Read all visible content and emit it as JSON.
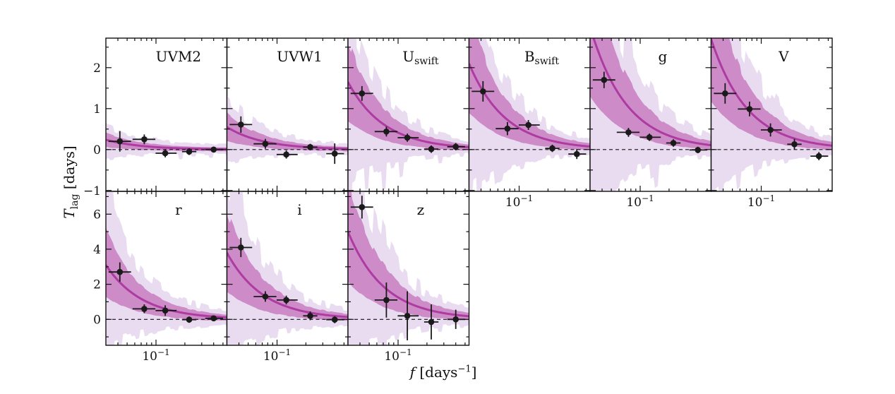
{
  "labels": {
    "y_var": "T",
    "y_sub": "lag",
    "y_unit": " [days]",
    "x_var": "f",
    "x_unit_open": " [days",
    "x_unit_sup": "−1",
    "x_unit_close": "]"
  },
  "colors": {
    "background": "#ffffff",
    "median_line": "#ad3ba2",
    "inner_band": "#cd8bc7",
    "outer_band": "#e9dcf0",
    "data_points": "#1a1a1a",
    "axis": "#111111"
  },
  "chart_data": {
    "type": "line",
    "title": "",
    "xlabel": "f [days^-1]",
    "ylabel": "T_lag [days]",
    "x_scale": "log",
    "x_range_days_inv": [
      0.03,
      0.55
    ],
    "x_major_ticks": [
      0.1
    ],
    "x_major_tick_label": {
      "base": "10",
      "exp": "−1"
    },
    "x_minor_ticks": [
      0.04,
      0.05,
      0.06,
      0.07,
      0.08,
      0.09,
      0.2,
      0.3,
      0.4,
      0.5
    ],
    "grid": "off",
    "legend": "none",
    "zero_line_days": 0,
    "rows": [
      {
        "y_range": [
          -1.02,
          2.72
        ],
        "y_major_ticks": [
          -1,
          0,
          1,
          2
        ],
        "y_minor_ticks": [
          -0.5,
          0.5,
          1.5,
          2.5
        ],
        "y_tick_labels": [
          "−1",
          "0",
          "1",
          "2"
        ]
      },
      {
        "y_range": [
          -1.48,
          7.3
        ],
        "y_major_ticks": [
          0,
          2,
          4,
          6
        ],
        "y_minor_ticks": [
          -1,
          1,
          3,
          5,
          7
        ],
        "y_tick_labels": [
          "0",
          "2",
          "4",
          "6"
        ]
      }
    ],
    "frequency_bins_days_inv": {
      "f": [
        0.042,
        0.0755,
        0.125,
        0.222,
        0.4
      ],
      "f_lo": [
        0.032,
        0.057,
        0.099,
        0.187,
        0.326
      ],
      "f_hi": [
        0.055,
        0.0985,
        0.164,
        0.264,
        0.5
      ]
    },
    "panels": [
      {
        "band": "UVM2",
        "label": {
          "main": "UVM2",
          "sub": ""
        },
        "row": 0,
        "col": 0,
        "model_median_at_fmin_days": 0.24,
        "lag_days": [
          0.2,
          0.25,
          -0.09,
          -0.05,
          0.0
        ],
        "lag_err_days": [
          0.25,
          0.12,
          0.1,
          0.08,
          0.06
        ]
      },
      {
        "band": "UVW1",
        "label": {
          "main": "UVW1",
          "sub": ""
        },
        "row": 0,
        "col": 1,
        "model_median_at_fmin_days": 0.55,
        "lag_days": [
          0.61,
          0.14,
          -0.12,
          0.06,
          -0.1
        ],
        "lag_err_days": [
          0.2,
          0.12,
          0.1,
          0.08,
          0.25
        ]
      },
      {
        "band": "U_swift",
        "label": {
          "main": "U",
          "sub": "swift"
        },
        "row": 0,
        "col": 2,
        "model_median_at_fmin_days": 1.65,
        "lag_days": [
          1.37,
          0.44,
          0.29,
          0.01,
          0.07
        ],
        "lag_err_days": [
          0.18,
          0.12,
          0.1,
          0.09,
          0.09
        ]
      },
      {
        "band": "B_swift",
        "label": {
          "main": "B",
          "sub": "swift"
        },
        "row": 0,
        "col": 3,
        "model_median_at_fmin_days": 2.1,
        "lag_days": [
          1.42,
          0.51,
          0.6,
          0.03,
          -0.11
        ],
        "lag_err_days": [
          0.25,
          0.16,
          0.12,
          0.09,
          0.12
        ]
      },
      {
        "band": "g",
        "label": {
          "main": "g",
          "sub": ""
        },
        "row": 0,
        "col": 4,
        "model_median_at_fmin_days": 3.0,
        "lag_days": [
          1.7,
          0.42,
          0.3,
          0.16,
          -0.01
        ],
        "lag_err_days": [
          0.2,
          0.11,
          0.09,
          0.09,
          0.08
        ]
      },
      {
        "band": "V",
        "label": {
          "main": "V",
          "sub": ""
        },
        "row": 0,
        "col": 5,
        "model_median_at_fmin_days": 2.7,
        "lag_days": [
          1.37,
          0.99,
          0.48,
          0.13,
          -0.16
        ],
        "lag_err_days": [
          0.25,
          0.18,
          0.16,
          0.13,
          0.1
        ]
      },
      {
        "band": "r",
        "label": {
          "main": "r",
          "sub": ""
        },
        "row": 1,
        "col": 0,
        "model_median_at_fmin_days": 3.1,
        "lag_days": [
          2.7,
          0.6,
          0.5,
          -0.02,
          0.06
        ],
        "lag_err_days": [
          0.55,
          0.25,
          0.3,
          0.18,
          0.15
        ]
      },
      {
        "band": "i",
        "label": {
          "main": "i",
          "sub": ""
        },
        "row": 1,
        "col": 1,
        "model_median_at_fmin_days": 3.8,
        "lag_days": [
          4.1,
          1.3,
          1.1,
          0.2,
          -0.02
        ],
        "lag_err_days": [
          0.55,
          0.3,
          0.25,
          0.25,
          0.2
        ]
      },
      {
        "band": "z",
        "label": {
          "main": "z",
          "sub": ""
        },
        "row": 1,
        "col": 2,
        "model_median_at_fmin_days": 5.0,
        "lag_days": [
          6.4,
          1.1,
          0.2,
          -0.15,
          0.0
        ],
        "lag_err_days": [
          0.65,
          1.0,
          1.4,
          1.0,
          0.55
        ]
      }
    ]
  }
}
